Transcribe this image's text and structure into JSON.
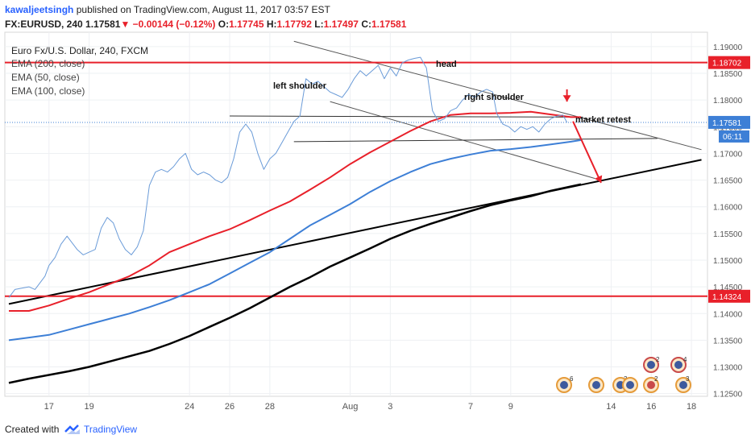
{
  "header": {
    "author": "kawaljeetsingh",
    "published_text": "published on TradingView.com, August 11, 2017 03:57 EST",
    "symbol_line_prefix": "FX:EURUSD, 240",
    "last": "1.17581",
    "change": "−0.00144 (−0.12%)",
    "o_label": "O:",
    "o_val": "1.17745",
    "h_label": "H:",
    "h_val": "1.17792",
    "l_label": "L:",
    "l_val": "1.17497",
    "c_label": "C:",
    "c_val": "1.17581"
  },
  "legend": {
    "title": "Euro Fx/U.S. Dollar, 240, FXCM",
    "ema200": "EMA (200, close)",
    "ema50": "EMA (50, close)",
    "ema100": "EMA (100, close)"
  },
  "annotations": {
    "head": "head",
    "left_shoulder": "left shoulder",
    "right_shoulder": "right shoulder",
    "market_retest": "market retest"
  },
  "footer": {
    "created_with": "Created with",
    "brand": "TradingView"
  },
  "colors": {
    "price": "#6a9bd8",
    "ema200": "#000000",
    "ema50": "#e8202a",
    "ema100": "#3d7fd6",
    "level": "#e8202a",
    "trend": "#000000"
  },
  "chart_data": {
    "type": "line",
    "price_ticks": [
      "1.19000",
      "1.18500",
      "1.18000",
      "1.17500",
      "1.17000",
      "1.16500",
      "1.16000",
      "1.15500",
      "1.15000",
      "1.14500",
      "1.14000",
      "1.13500",
      "1.13000",
      "1.12500"
    ],
    "date_ticks": [
      {
        "label": "17",
        "day": 17
      },
      {
        "label": "19",
        "day": 19
      },
      {
        "label": "24",
        "day": 24
      },
      {
        "label": "26",
        "day": 26
      },
      {
        "label": "28",
        "day": 28
      },
      {
        "label": "Aug",
        "day": 32
      },
      {
        "label": "3",
        "day": 34
      },
      {
        "label": "7",
        "day": 38
      },
      {
        "label": "9",
        "day": 40
      },
      {
        "label": "14",
        "day": 45
      },
      {
        "label": "16",
        "day": 47
      },
      {
        "label": "18",
        "day": 49
      }
    ],
    "levels": [
      {
        "name": "resistance",
        "value": 1.18702,
        "label": "1.18702"
      },
      {
        "name": "support",
        "value": 1.14324,
        "label": "1.14324"
      }
    ],
    "last_price": {
      "value": 1.17581,
      "label": "1.17581",
      "countdown": "06:11"
    },
    "price_series": [
      [
        15.0,
        1.143
      ],
      [
        15.3,
        1.1445
      ],
      [
        15.7,
        1.1448
      ],
      [
        16.0,
        1.145
      ],
      [
        16.3,
        1.1445
      ],
      [
        16.5,
        1.1455
      ],
      [
        16.8,
        1.147
      ],
      [
        17.0,
        1.149
      ],
      [
        17.3,
        1.1505
      ],
      [
        17.6,
        1.153
      ],
      [
        17.9,
        1.1545
      ],
      [
        18.1,
        1.1535
      ],
      [
        18.4,
        1.152
      ],
      [
        18.7,
        1.151
      ],
      [
        19.0,
        1.1515
      ],
      [
        19.3,
        1.152
      ],
      [
        19.6,
        1.156
      ],
      [
        19.9,
        1.158
      ],
      [
        20.2,
        1.157
      ],
      [
        20.5,
        1.154
      ],
      [
        20.8,
        1.152
      ],
      [
        21.1,
        1.151
      ],
      [
        21.4,
        1.1525
      ],
      [
        21.7,
        1.1555
      ],
      [
        22.0,
        1.164
      ],
      [
        22.3,
        1.1665
      ],
      [
        22.6,
        1.167
      ],
      [
        22.9,
        1.1665
      ],
      [
        23.2,
        1.1675
      ],
      [
        23.5,
        1.169
      ],
      [
        23.8,
        1.17
      ],
      [
        24.1,
        1.167
      ],
      [
        24.4,
        1.166
      ],
      [
        24.7,
        1.1665
      ],
      [
        25.0,
        1.166
      ],
      [
        25.3,
        1.165
      ],
      [
        25.6,
        1.1645
      ],
      [
        25.9,
        1.1655
      ],
      [
        26.2,
        1.169
      ],
      [
        26.5,
        1.174
      ],
      [
        26.8,
        1.1755
      ],
      [
        27.1,
        1.174
      ],
      [
        27.4,
        1.17
      ],
      [
        27.7,
        1.167
      ],
      [
        28.0,
        1.169
      ],
      [
        28.3,
        1.17
      ],
      [
        28.6,
        1.172
      ],
      [
        28.9,
        1.174
      ],
      [
        29.2,
        1.176
      ],
      [
        29.5,
        1.177
      ],
      [
        29.8,
        1.184
      ],
      [
        30.1,
        1.183
      ],
      [
        30.4,
        1.1835
      ],
      [
        30.7,
        1.1825
      ],
      [
        31.0,
        1.1815
      ],
      [
        31.3,
        1.181
      ],
      [
        31.6,
        1.1805
      ],
      [
        31.9,
        1.182
      ],
      [
        32.2,
        1.184
      ],
      [
        32.5,
        1.1855
      ],
      [
        32.8,
        1.1845
      ],
      [
        33.1,
        1.1855
      ],
      [
        33.4,
        1.1865
      ],
      [
        33.7,
        1.184
      ],
      [
        34.0,
        1.186
      ],
      [
        34.3,
        1.1845
      ],
      [
        34.6,
        1.187
      ],
      [
        34.9,
        1.1875
      ],
      [
        35.2,
        1.1878
      ],
      [
        35.5,
        1.188
      ],
      [
        35.8,
        1.186
      ],
      [
        36.1,
        1.178
      ],
      [
        36.4,
        1.176
      ],
      [
        36.7,
        1.1765
      ],
      [
        37.0,
        1.178
      ],
      [
        37.3,
        1.1785
      ],
      [
        37.6,
        1.18
      ],
      [
        37.9,
        1.181
      ],
      [
        38.2,
        1.1805
      ],
      [
        38.5,
        1.1815
      ],
      [
        38.8,
        1.182
      ],
      [
        39.1,
        1.1815
      ],
      [
        39.3,
        1.1775
      ],
      [
        39.6,
        1.1755
      ],
      [
        39.9,
        1.175
      ],
      [
        40.2,
        1.174
      ],
      [
        40.5,
        1.175
      ],
      [
        40.8,
        1.1745
      ],
      [
        41.1,
        1.175
      ],
      [
        41.4,
        1.174
      ],
      [
        41.7,
        1.1755
      ],
      [
        42.0,
        1.1765
      ],
      [
        42.3,
        1.177
      ],
      [
        42.6,
        1.1772
      ],
      [
        42.8,
        1.1758
      ]
    ],
    "ema50_series": [
      [
        15.0,
        1.1405
      ],
      [
        16.0,
        1.1405
      ],
      [
        17.0,
        1.1415
      ],
      [
        18.0,
        1.1428
      ],
      [
        19.0,
        1.144
      ],
      [
        20.0,
        1.1455
      ],
      [
        21.0,
        1.147
      ],
      [
        22.0,
        1.149
      ],
      [
        23.0,
        1.1515
      ],
      [
        24.0,
        1.153
      ],
      [
        25.0,
        1.1545
      ],
      [
        26.0,
        1.1558
      ],
      [
        27.0,
        1.1575
      ],
      [
        28.0,
        1.1593
      ],
      [
        29.0,
        1.161
      ],
      [
        30.0,
        1.1632
      ],
      [
        31.0,
        1.1655
      ],
      [
        32.0,
        1.168
      ],
      [
        33.0,
        1.1702
      ],
      [
        34.0,
        1.1722
      ],
      [
        35.0,
        1.1742
      ],
      [
        36.0,
        1.176
      ],
      [
        37.0,
        1.1772
      ],
      [
        38.0,
        1.1775
      ],
      [
        39.0,
        1.1775
      ],
      [
        40.0,
        1.1776
      ],
      [
        41.0,
        1.1778
      ],
      [
        42.0,
        1.1773
      ],
      [
        43.0,
        1.1768
      ],
      [
        43.5,
        1.1768
      ]
    ],
    "ema100_series": [
      [
        15.0,
        1.135
      ],
      [
        16.0,
        1.1355
      ],
      [
        17.0,
        1.136
      ],
      [
        18.0,
        1.137
      ],
      [
        19.0,
        1.138
      ],
      [
        20.0,
        1.139
      ],
      [
        21.0,
        1.14
      ],
      [
        22.0,
        1.1412
      ],
      [
        23.0,
        1.1425
      ],
      [
        24.0,
        1.144
      ],
      [
        25.0,
        1.1455
      ],
      [
        26.0,
        1.1475
      ],
      [
        27.0,
        1.1495
      ],
      [
        28.0,
        1.1515
      ],
      [
        29.0,
        1.154
      ],
      [
        30.0,
        1.1565
      ],
      [
        31.0,
        1.1585
      ],
      [
        32.0,
        1.1605
      ],
      [
        33.0,
        1.1628
      ],
      [
        34.0,
        1.1648
      ],
      [
        35.0,
        1.1665
      ],
      [
        36.0,
        1.168
      ],
      [
        37.0,
        1.169
      ],
      [
        38.0,
        1.1698
      ],
      [
        39.0,
        1.1705
      ],
      [
        40.0,
        1.1708
      ],
      [
        41.0,
        1.1712
      ],
      [
        42.0,
        1.1717
      ],
      [
        43.0,
        1.1722
      ],
      [
        43.5,
        1.1725
      ]
    ],
    "ema200_series": [
      [
        15.0,
        1.127
      ],
      [
        16.0,
        1.1278
      ],
      [
        17.0,
        1.1285
      ],
      [
        18.0,
        1.1292
      ],
      [
        19.0,
        1.13
      ],
      [
        20.0,
        1.131
      ],
      [
        21.0,
        1.132
      ],
      [
        22.0,
        1.133
      ],
      [
        23.0,
        1.1343
      ],
      [
        24.0,
        1.1358
      ],
      [
        25.0,
        1.1375
      ],
      [
        26.0,
        1.1392
      ],
      [
        27.0,
        1.141
      ],
      [
        28.0,
        1.143
      ],
      [
        29.0,
        1.145
      ],
      [
        30.0,
        1.1468
      ],
      [
        31.0,
        1.1488
      ],
      [
        32.0,
        1.1505
      ],
      [
        33.0,
        1.1522
      ],
      [
        34.0,
        1.154
      ],
      [
        35.0,
        1.1555
      ],
      [
        36.0,
        1.1568
      ],
      [
        37.0,
        1.158
      ],
      [
        38.0,
        1.1592
      ],
      [
        39.0,
        1.1603
      ],
      [
        40.0,
        1.1612
      ],
      [
        41.0,
        1.162
      ],
      [
        42.0,
        1.163
      ],
      [
        43.0,
        1.1638
      ],
      [
        43.5,
        1.1642
      ]
    ],
    "trendlines": [
      {
        "name": "long-support-trendline",
        "color": "#000000",
        "width": 2,
        "from": [
          15.0,
          1.1418
        ],
        "to": [
          49.5,
          1.1688
        ]
      },
      {
        "name": "upper-channel-line",
        "color": "#555555",
        "width": 1,
        "from": [
          29.2,
          1.191
        ],
        "to": [
          49.5,
          1.1707
        ]
      },
      {
        "name": "lower-channel-line",
        "color": "#555555",
        "width": 1,
        "from": [
          31.0,
          1.1797
        ],
        "to": [
          44.2,
          1.1653
        ]
      },
      {
        "name": "neckline-upper",
        "color": "#333333",
        "width": 1,
        "from": [
          26.0,
          1.177
        ],
        "to": [
          43.6,
          1.1768
        ]
      },
      {
        "name": "neckline-lower",
        "color": "#333333",
        "width": 1,
        "from": [
          29.2,
          1.1722
        ],
        "to": [
          47.3,
          1.1728
        ]
      }
    ],
    "arrows": [
      {
        "name": "projection-arrow",
        "from": [
          43.1,
          1.176
        ],
        "to": [
          44.5,
          1.1645
        ]
      },
      {
        "name": "retest-arrow",
        "from": [
          42.8,
          1.182
        ],
        "to": [
          42.8,
          1.1797
        ]
      }
    ],
    "ylim": [
      1.1245,
      1.1927
    ],
    "xlim": [
      14.8,
      49.8
    ]
  }
}
